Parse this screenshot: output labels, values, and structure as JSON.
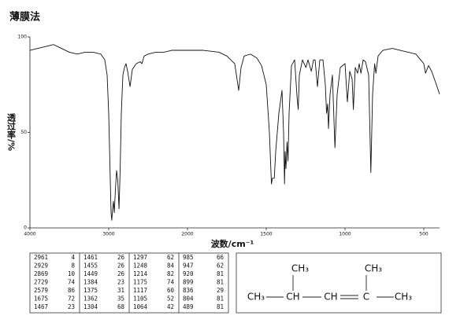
{
  "chart_data": {
    "type": "line",
    "title": "薄膜法",
    "xlabel": "波数/cm⁻¹",
    "ylabel": "透过率/%",
    "xlim": [
      4000,
      400
    ],
    "xticks": [
      4000,
      3000,
      2000,
      1500,
      1000,
      500
    ],
    "ylim": [
      0,
      100
    ],
    "yticks": [
      0,
      50,
      100
    ],
    "color": "#111111",
    "x": [
      4000,
      3900,
      3800,
      3700,
      3600,
      3500,
      3400,
      3300,
      3200,
      3100,
      3050,
      3020,
      3000,
      2980,
      2970,
      2961,
      2950,
      2940,
      2929,
      2915,
      2900,
      2885,
      2869,
      2855,
      2840,
      2820,
      2800,
      2780,
      2760,
      2729,
      2700,
      2650,
      2600,
      2579,
      2550,
      2500,
      2400,
      2300,
      2200,
      2100,
      2000,
      1900,
      1800,
      1750,
      1700,
      1675,
      1660,
      1640,
      1600,
      1560,
      1530,
      1500,
      1480,
      1467,
      1461,
      1455,
      1449,
      1440,
      1420,
      1400,
      1390,
      1384,
      1380,
      1375,
      1368,
      1362,
      1355,
      1340,
      1320,
      1304,
      1297,
      1290,
      1270,
      1248,
      1235,
      1214,
      1200,
      1190,
      1175,
      1160,
      1140,
      1125,
      1117,
      1110,
      1105,
      1095,
      1080,
      1064,
      1050,
      1030,
      1000,
      985,
      970,
      955,
      947,
      935,
      920,
      910,
      899,
      885,
      870,
      850,
      836,
      825,
      812,
      804,
      790,
      760,
      700,
      650,
      600,
      550,
      520,
      500,
      489,
      470,
      450,
      420,
      400
    ],
    "values": [
      93,
      94,
      95,
      96,
      94,
      92,
      91,
      92,
      92,
      91,
      88,
      80,
      60,
      25,
      8,
      4,
      10,
      14,
      8,
      20,
      30,
      25,
      10,
      30,
      60,
      80,
      84,
      86,
      82,
      74,
      83,
      86,
      87,
      86,
      90,
      91,
      92,
      92,
      93,
      93,
      93,
      93,
      92,
      90,
      86,
      72,
      84,
      90,
      91,
      89,
      85,
      75,
      50,
      23,
      26,
      26,
      26,
      40,
      60,
      72,
      50,
      23,
      40,
      31,
      45,
      35,
      60,
      85,
      88,
      68,
      62,
      80,
      88,
      84,
      88,
      82,
      88,
      88,
      74,
      88,
      88,
      75,
      60,
      65,
      52,
      70,
      80,
      42,
      70,
      84,
      86,
      66,
      82,
      78,
      62,
      84,
      81,
      86,
      81,
      88,
      87,
      80,
      29,
      70,
      86,
      81,
      90,
      93,
      94,
      93,
      92,
      91,
      88,
      86,
      81,
      85,
      82,
      75,
      70
    ]
  },
  "peak_table": {
    "columns": [
      [
        [
          "2961",
          "4"
        ],
        [
          "2929",
          "8"
        ],
        [
          "2869",
          "10"
        ],
        [
          "2729",
          "74"
        ],
        [
          "2579",
          "86"
        ],
        [
          "1675",
          "72"
        ],
        [
          "1467",
          "23"
        ]
      ],
      [
        [
          "1461",
          "26"
        ],
        [
          "1455",
          "26"
        ],
        [
          "1449",
          "26"
        ],
        [
          "1384",
          "23"
        ],
        [
          "1375",
          "31"
        ],
        [
          "1362",
          "35"
        ],
        [
          "1304",
          "68"
        ]
      ],
      [
        [
          "1297",
          "62"
        ],
        [
          "1248",
          "84"
        ],
        [
          "1214",
          "82"
        ],
        [
          "1175",
          "74"
        ],
        [
          "1117",
          "60"
        ],
        [
          "1105",
          "52"
        ],
        [
          "1064",
          "42"
        ]
      ],
      [
        [
          "985",
          "66"
        ],
        [
          "947",
          "62"
        ],
        [
          "920",
          "81"
        ],
        [
          "899",
          "81"
        ],
        [
          "836",
          "29"
        ],
        [
          "804",
          "81"
        ],
        [
          "489",
          "81"
        ]
      ]
    ]
  },
  "structure": {
    "chain": [
      "CH₃",
      "CH",
      "CH",
      "C",
      "CH₃"
    ],
    "branches": [
      "CH₃",
      "CH₃"
    ]
  }
}
